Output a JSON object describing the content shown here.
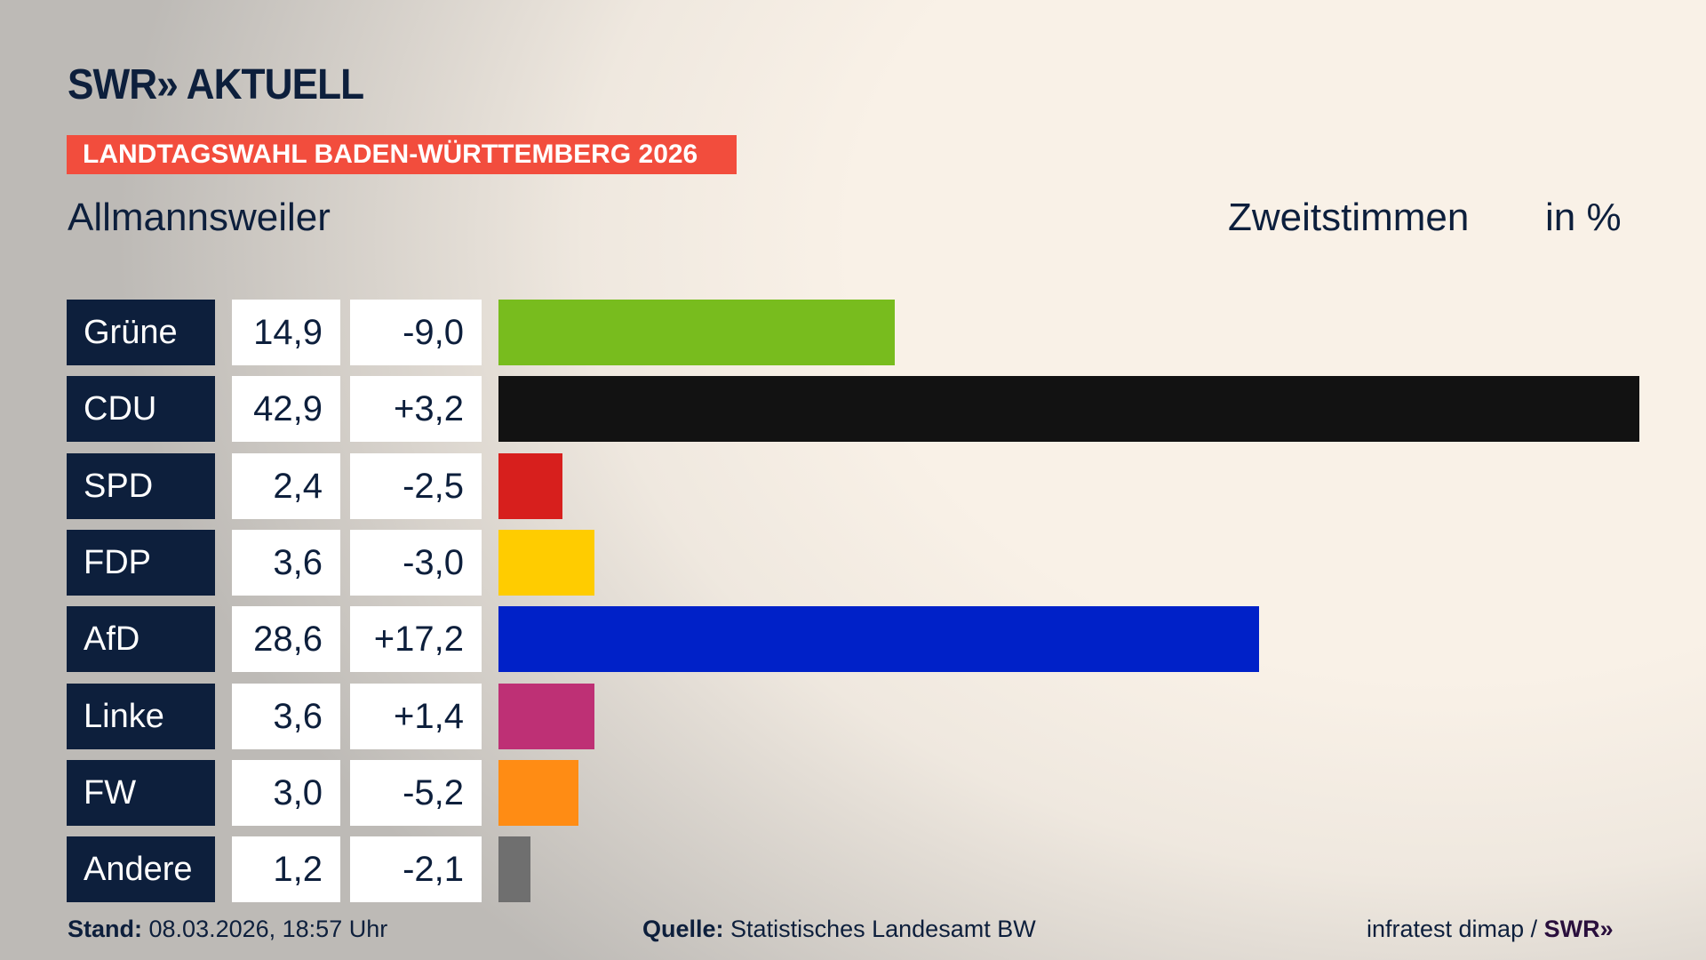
{
  "header": {
    "logo": "SWR» AKTUELL",
    "banner": "LANDTAGSWAHL BADEN-WÜRTTEMBERG 2026",
    "place": "Allmannsweiler",
    "measure": "Zweitstimmen",
    "unit": "in %"
  },
  "chart_data": {
    "type": "bar",
    "orientation": "horizontal",
    "title": "Allmannsweiler",
    "xlabel": "Zweitstimmen in %",
    "xlim": [
      0,
      42.9
    ],
    "categories": [
      "Grüne",
      "CDU",
      "SPD",
      "FDP",
      "AfD",
      "Linke",
      "FW",
      "Andere"
    ],
    "values": [
      14.9,
      42.9,
      2.4,
      3.6,
      28.6,
      3.6,
      3.0,
      1.2
    ],
    "value_labels": [
      "14,9",
      "42,9",
      "2,4",
      "3,6",
      "28,6",
      "3,6",
      "3,0",
      "1,2"
    ],
    "diff_labels": [
      "-9,0",
      "+3,2",
      "-2,5",
      "-3,0",
      "+17,2",
      "+1,4",
      "-5,2",
      "-2,1"
    ],
    "colors": [
      "#78bc1e",
      "#121212",
      "#d71f1d",
      "#ffcc00",
      "#0021c8",
      "#be3075",
      "#ff8c14",
      "#6f6f6f"
    ]
  },
  "footer": {
    "stand_label": "Stand:",
    "stand_value": "08.03.2026, 18:57 Uhr",
    "source_label": "Quelle:",
    "source_value": "Statistisches Landesamt BW",
    "credit": "infratest dimap /",
    "credit_logo": "SWR»"
  }
}
